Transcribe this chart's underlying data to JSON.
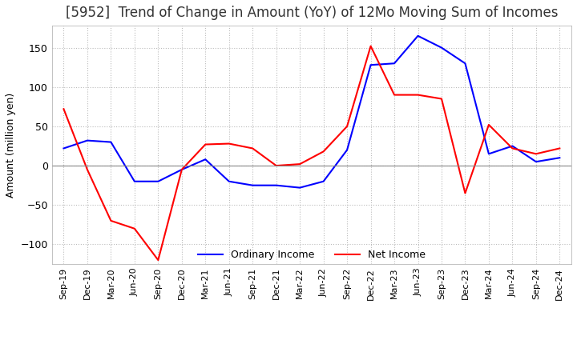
{
  "title": "[5952]  Trend of Change in Amount (YoY) of 12Mo Moving Sum of Incomes",
  "ylabel": "Amount (million yen)",
  "x_labels": [
    "Sep-19",
    "Dec-19",
    "Mar-20",
    "Jun-20",
    "Sep-20",
    "Dec-20",
    "Mar-21",
    "Jun-21",
    "Sep-21",
    "Dec-21",
    "Mar-22",
    "Jun-22",
    "Sep-22",
    "Dec-22",
    "Mar-23",
    "Jun-23",
    "Sep-23",
    "Dec-23",
    "Mar-24",
    "Jun-24",
    "Sep-24",
    "Dec-24"
  ],
  "ordinary_income": [
    22,
    32,
    30,
    -20,
    -20,
    -5,
    8,
    -20,
    -25,
    -25,
    -28,
    -20,
    20,
    128,
    130,
    165,
    150,
    130,
    15,
    25,
    5,
    10
  ],
  "net_income": [
    72,
    -5,
    -70,
    -80,
    -120,
    -5,
    27,
    28,
    22,
    0,
    2,
    18,
    50,
    152,
    90,
    90,
    85,
    -35,
    52,
    22,
    15,
    22
  ],
  "ordinary_color": "#0000ff",
  "net_color": "#ff0000",
  "ylim": [
    -125,
    178
  ],
  "yticks": [
    -100,
    -50,
    0,
    50,
    100,
    150
  ],
  "grid_color": "#bbbbbb",
  "background_color": "#ffffff",
  "title_fontsize": 12,
  "legend_labels": [
    "Ordinary Income",
    "Net Income"
  ]
}
